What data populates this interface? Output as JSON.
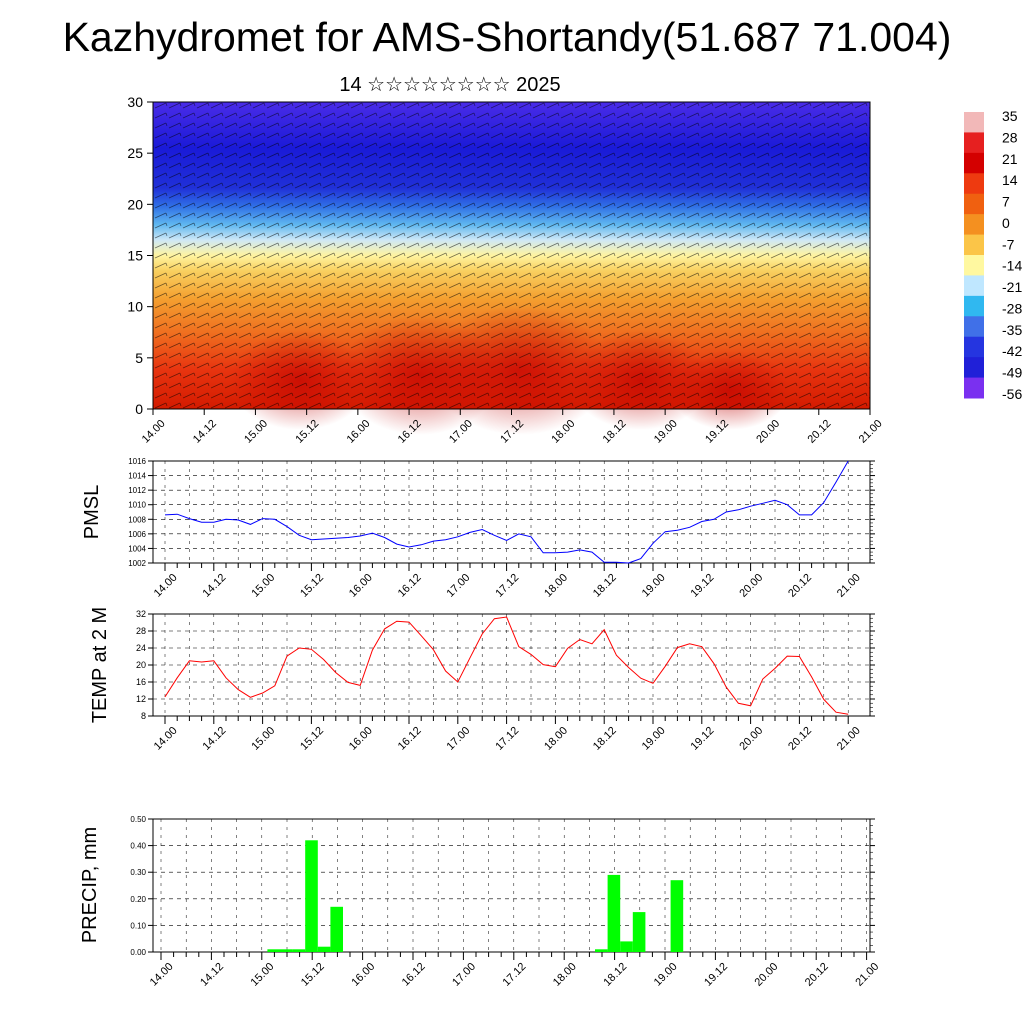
{
  "title": "Kazhydromet for AMS-Shortandy(51.687 71.004)",
  "subtitle": "14 ☆☆☆☆☆☆☆☆ 2025",
  "time_labels": [
    "14.00",
    "14.12",
    "15.00",
    "15.12",
    "16.00",
    "16.12",
    "17.00",
    "17.12",
    "18.00",
    "18.12",
    "19.00",
    "19.12",
    "20.00",
    "20.12",
    "21.00"
  ],
  "colorbar": {
    "labels": [
      "35",
      "28",
      "21",
      "14",
      "7",
      "0",
      "-7",
      "-14",
      "-21",
      "-28",
      "-35",
      "-42",
      "-49",
      "-56"
    ],
    "colors": [
      "#f2b8b8",
      "#e62020",
      "#d40000",
      "#ee3a10",
      "#f06010",
      "#f49020",
      "#fbc548",
      "#fff8a0",
      "#bfe7ff",
      "#30b8f0",
      "#4070e8",
      "#2535e0",
      "#2020d8",
      "#7a30f0"
    ]
  },
  "chart_data": [
    {
      "type": "heatmap",
      "title": "",
      "xlabel": "",
      "ylabel": "",
      "ylim": [
        0,
        30
      ],
      "yticks": [
        0,
        5,
        10,
        15,
        20,
        25,
        30
      ],
      "xticks": [
        "14.00",
        "14.12",
        "15.00",
        "15.12",
        "16.00",
        "16.12",
        "17.00",
        "17.12",
        "18.00",
        "18.12",
        "19.00",
        "19.12",
        "20.00",
        "20.12",
        "21.00"
      ],
      "levels": [
        0,
        2,
        4,
        6,
        8,
        10,
        12,
        14,
        16,
        18,
        20,
        22,
        24,
        26,
        28,
        30
      ],
      "temperature_profile": [
        20,
        22,
        18,
        14,
        10,
        7,
        2,
        -6,
        -18,
        -30,
        -40,
        -46,
        -50,
        -48,
        -52,
        -56
      ],
      "notes": "temperature field with wind barbs overlay"
    },
    {
      "type": "line",
      "ylabel": "PMSL",
      "ylim": [
        1002,
        1016
      ],
      "yticks": [
        1002,
        1004,
        1006,
        1008,
        1010,
        1012,
        1014,
        1016
      ],
      "series": [
        {
          "color": "#0000ff",
          "x": [
            0,
            3,
            6,
            9,
            12,
            15,
            18,
            21,
            24,
            27,
            30,
            33,
            36,
            39,
            42,
            45,
            48,
            51,
            54,
            57,
            60,
            63,
            66,
            69,
            72,
            75,
            78,
            81,
            84,
            87,
            90,
            93,
            96,
            99,
            102,
            105,
            108,
            111,
            114,
            117,
            120,
            123,
            126,
            129,
            132,
            135,
            138,
            141,
            144,
            147,
            150,
            153,
            156,
            159,
            162,
            165,
            168
          ],
          "values": [
            1008.6,
            1008.7,
            1008.1,
            1007.6,
            1007.6,
            1008.0,
            1007.9,
            1007.3,
            1008.1,
            1008.0,
            1007.0,
            1005.8,
            1005.2,
            1005.3,
            1005.4,
            1005.5,
            1005.7,
            1006.1,
            1005.5,
            1004.6,
            1004.2,
            1004.5,
            1005.0,
            1005.2,
            1005.6,
            1006.2,
            1006.6,
            1005.8,
            1005.1,
            1006.0,
            1005.6,
            1003.4,
            1003.4,
            1003.5,
            1003.8,
            1003.5,
            1002.1,
            1002.1,
            1002.0,
            1002.6,
            1004.7,
            1006.3,
            1006.5,
            1006.9,
            1007.7,
            1008.0,
            1009.0,
            1009.3,
            1009.8,
            1010.2,
            1010.6,
            1010.0,
            1008.6,
            1008.6,
            1010.3,
            1013.1,
            1016.0
          ]
        }
      ]
    },
    {
      "type": "line",
      "ylabel": "TEMP at 2 M",
      "ylim": [
        8,
        32
      ],
      "yticks": [
        8,
        12,
        16,
        20,
        24,
        28,
        32
      ],
      "series": [
        {
          "color": "#ff0000",
          "x": [
            0,
            3,
            6,
            9,
            12,
            15,
            18,
            21,
            24,
            27,
            30,
            33,
            36,
            39,
            42,
            45,
            48,
            51,
            54,
            57,
            60,
            63,
            66,
            69,
            72,
            75,
            78,
            81,
            84,
            87,
            90,
            93,
            96,
            99,
            102,
            105,
            108,
            111,
            114,
            117,
            120,
            123,
            126,
            129,
            132,
            135,
            138,
            141,
            144,
            147,
            150,
            153,
            156,
            159,
            162,
            165,
            168
          ],
          "values": [
            12.5,
            17.0,
            21.0,
            20.7,
            21.0,
            17.0,
            14.2,
            12.4,
            13.4,
            15.1,
            22.1,
            24.0,
            23.7,
            21.3,
            18.2,
            15.9,
            15.2,
            23.5,
            28.5,
            30.3,
            30.1,
            26.9,
            23.6,
            18.6,
            16.0,
            21.7,
            27.3,
            30.9,
            31.3,
            24.3,
            22.5,
            20.1,
            19.6,
            23.9,
            26.0,
            25.0,
            28.3,
            22.3,
            19.4,
            16.9,
            15.7,
            19.7,
            24.1,
            25.0,
            24.3,
            20.3,
            14.8,
            11.0,
            10.4,
            16.7,
            19.2,
            22.1,
            22.0,
            17.2,
            11.9,
            8.9,
            8.4
          ]
        }
      ]
    },
    {
      "type": "bar",
      "ylabel": "PRECIP, mm",
      "ylim": [
        0,
        0.5
      ],
      "yticks": [
        "0.00",
        "0.10",
        "0.20",
        "0.30",
        "0.40",
        "0.50"
      ],
      "color": "#00ff00",
      "x": [
        27,
        30,
        33,
        36,
        39,
        42,
        105,
        108,
        111,
        114,
        123
      ],
      "values": [
        0.01,
        0.01,
        0.01,
        0.42,
        0.02,
        0.17,
        0.01,
        0.29,
        0.04,
        0.15,
        0.27
      ]
    }
  ]
}
